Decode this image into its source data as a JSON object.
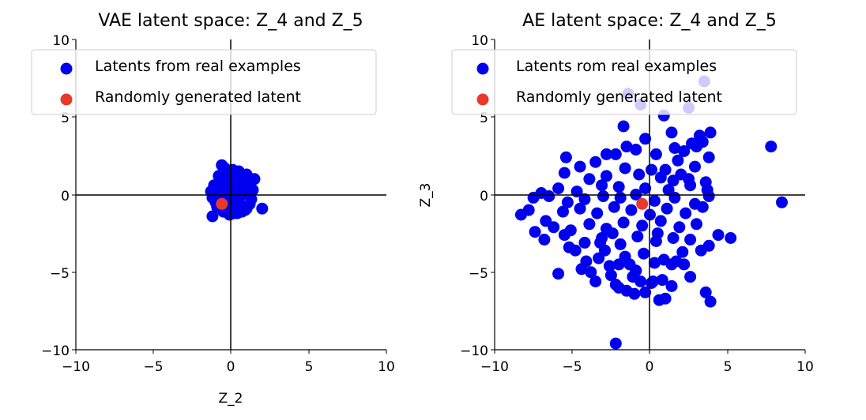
{
  "colors": {
    "real": "#0000ee",
    "random": "#e8392a",
    "axis": "#000000",
    "legend_border": "#cccccc"
  },
  "chart_data": [
    {
      "type": "scatter",
      "title": "VAE latent space: Z_4 and Z_5",
      "xlabel": "Z_2",
      "ylabel": "",
      "xlim": [
        -10,
        10
      ],
      "ylim": [
        -10,
        10
      ],
      "xticks": [
        "−10",
        "−5",
        "0",
        "5",
        "10"
      ],
      "yticks": [
        "10",
        "5",
        "0",
        "−5",
        "−10"
      ],
      "legend": {
        "placement": "top-left",
        "entries": [
          "Latents from real examples",
          "Randomly generated latent"
        ]
      },
      "series": [
        {
          "name": "Latents from real examples",
          "x": [
            -0.6,
            0.1,
            0.5,
            1.0,
            -0.8,
            -0.3,
            0.3,
            0.8,
            1.2,
            -1.1,
            -0.5,
            0.0,
            0.4,
            0.9,
            1.4,
            -1.3,
            -0.9,
            -0.2,
            0.6,
            1.1,
            -0.7,
            0.2,
            0.7,
            -1.2,
            -0.4,
            0.1,
            0.5,
            1.3,
            -1.0,
            -0.6,
            0.3,
            0.8,
            -0.2,
            0.6,
            1.0,
            -0.9,
            0.0,
            0.4,
            0.9,
            -0.5,
            0.2,
            0.7,
            -0.3,
            0.5,
            1.2,
            -1.1,
            0.1,
            0.8,
            0.3,
            -0.7,
            2.0,
            -1.2,
            -0.4,
            1.5,
            0.6,
            -0.1
          ],
          "y": [
            1.9,
            1.6,
            1.5,
            1.3,
            1.2,
            1.4,
            1.1,
            1.0,
            0.8,
            0.6,
            0.9,
            1.0,
            0.7,
            0.5,
            0.3,
            0.2,
            0.4,
            0.6,
            0.4,
            0.1,
            0.0,
            0.2,
            0.0,
            -0.2,
            -0.1,
            -0.3,
            -0.4,
            -0.3,
            -0.5,
            -0.7,
            -0.6,
            -0.8,
            -0.9,
            -1.0,
            -0.9,
            -0.8,
            -1.1,
            -1.2,
            -1.0,
            -1.1,
            -1.2,
            -1.1,
            0.3,
            0.1,
            -0.6,
            -0.3,
            0.8,
            0.6,
            -0.2,
            -0.4,
            -0.9,
            -1.4,
            1.7,
            1.0,
            1.3,
            -1.3
          ]
        },
        {
          "name": "Randomly generated latent",
          "x": [
            -0.6
          ],
          "y": [
            -0.6
          ]
        }
      ]
    },
    {
      "type": "scatter",
      "title": "AE latent space: Z_4 and Z_5",
      "xlabel": "",
      "ylabel": "Z_3",
      "xlim": [
        -10,
        10
      ],
      "ylim": [
        -10,
        10
      ],
      "xticks": [
        "−10",
        "−5",
        "0",
        "5",
        "10"
      ],
      "yticks": [
        "10",
        "5",
        "0",
        "−5",
        "−10"
      ],
      "legend": {
        "placement": "top-left",
        "entries": [
          "Latents rom real examples",
          "Randomly generated latent"
        ]
      },
      "series": [
        {
          "name": "Latents rom real examples",
          "x": [
            -1.4,
            -0.6,
            0.9,
            2.5,
            3.5,
            -1.7,
            1.4,
            2.7,
            3.2,
            3.9,
            7.8,
            -2.8,
            -1.5,
            -0.3,
            1.6,
            2.2,
            3.0,
            3.4,
            -5.4,
            -3.5,
            -2.2,
            -0.9,
            0.4,
            1.8,
            2.9,
            3.8,
            -4.5,
            -1.6,
            0.1,
            1.0,
            2.0,
            -5.5,
            -3.9,
            -2.8,
            -0.7,
            0.7,
            1.5,
            2.5,
            3.6,
            -7.0,
            -5.9,
            -4.7,
            -3.1,
            -2.0,
            -0.3,
            1.2,
            2.6,
            3.7,
            8.5,
            -8.3,
            -7.5,
            -6.5,
            -5.3,
            -4.2,
            -3.0,
            -1.9,
            -0.9,
            0.3,
            1.6,
            2.9,
            3.8,
            -7.8,
            -6.7,
            -5.6,
            -4.5,
            -3.4,
            -2.3,
            -1.2,
            0.0,
            1.1,
            2.3,
            3.4,
            -7.4,
            -6.2,
            -5.1,
            -3.9,
            -2.8,
            -1.7,
            -0.5,
            0.7,
            1.9,
            3.0,
            4.4,
            -6.8,
            -5.5,
            -4.2,
            -3.1,
            -1.9,
            -0.8,
            0.4,
            1.5,
            2.6,
            3.8,
            5.2,
            -5.2,
            -4.1,
            -2.9,
            -1.6,
            -0.4,
            0.9,
            2.1,
            3.3,
            -5.9,
            -4.4,
            -3.3,
            -2.0,
            -0.9,
            0.3,
            1.4,
            2.6,
            -3.5,
            -2.5,
            -1.1,
            0.1,
            1.4,
            -2.0,
            -0.6,
            0.8,
            3.6,
            3.9,
            -2.2,
            -1.5,
            -0.3,
            1.0,
            -3.8,
            -2.6,
            -1.3,
            0.2,
            1.7,
            -4.8,
            -3.2,
            0.5,
            -0.9,
            -2.4,
            2.2,
            -1.0,
            0.6,
            -2.2
          ],
          "y": [
            6.5,
            5.8,
            5.1,
            5.6,
            7.3,
            4.4,
            4.0,
            3.3,
            3.8,
            4.0,
            3.1,
            2.6,
            3.1,
            3.6,
            3.0,
            2.8,
            3.1,
            3.4,
            2.4,
            2.1,
            2.6,
            2.9,
            2.6,
            2.2,
            1.8,
            2.4,
            1.8,
            1.7,
            1.6,
            1.6,
            1.3,
            1.4,
            1.0,
            1.2,
            1.3,
            1.1,
            0.9,
            1.0,
            0.8,
            0.1,
            0.4,
            0.2,
            0.6,
            0.5,
            0.4,
            0.3,
            0.6,
            0.3,
            -0.5,
            -1.3,
            -0.2,
            -0.1,
            -0.5,
            -0.3,
            -0.1,
            -0.2,
            0.0,
            -0.4,
            -0.2,
            -0.6,
            -0.1,
            -1.0,
            -1.7,
            -1.1,
            -0.9,
            -1.2,
            -0.8,
            -1.0,
            -1.3,
            -0.9,
            -1.2,
            -0.8,
            -2.4,
            -2.1,
            -2.3,
            -1.9,
            -2.2,
            -1.8,
            -2.0,
            -1.7,
            -2.1,
            -1.9,
            -2.6,
            -2.9,
            -2.6,
            -3.1,
            -2.8,
            -3.2,
            -2.7,
            -3.0,
            -2.8,
            -2.9,
            -3.3,
            -2.8,
            -3.4,
            -4.3,
            -3.6,
            -4.0,
            -3.8,
            -4.2,
            -3.7,
            -3.6,
            -5.1,
            -4.8,
            -4.1,
            -4.5,
            -4.9,
            -4.4,
            -4.5,
            -5.3,
            -5.6,
            -5.2,
            -5.3,
            -5.7,
            -5.9,
            -6.0,
            -5.6,
            -5.5,
            -6.3,
            -6.9,
            -5.8,
            -6.2,
            -6.3,
            -6.7,
            -5.0,
            -4.6,
            -4.5,
            -5.6,
            -4.3,
            -3.6,
            -3.1,
            -2.5,
            -4.9,
            -2.5,
            -4.5,
            -6.4,
            -6.8,
            -9.6
          ]
        },
        {
          "name": "Randomly generated latent",
          "x": [
            -0.5
          ],
          "y": [
            -0.6
          ]
        }
      ]
    }
  ]
}
